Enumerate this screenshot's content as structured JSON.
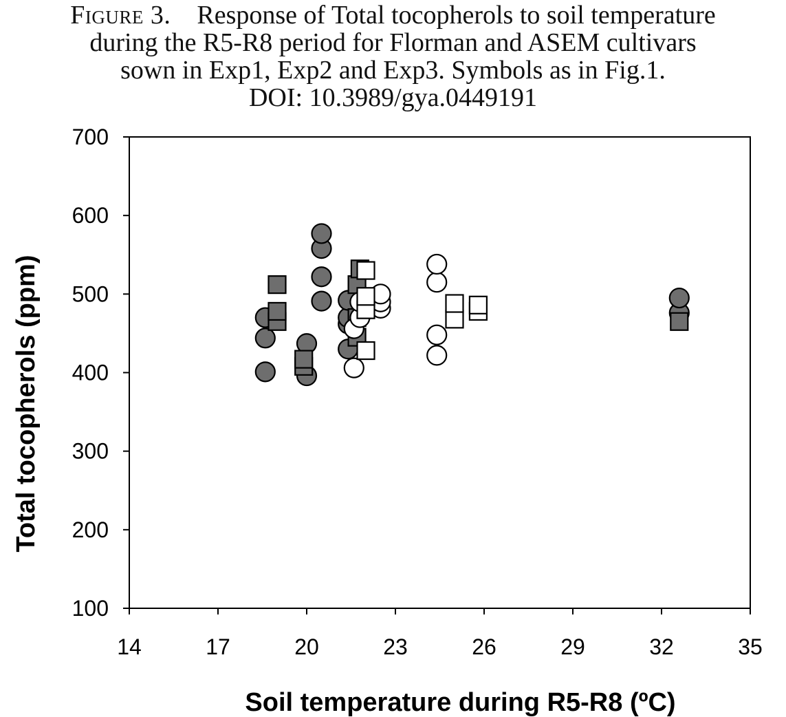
{
  "caption": {
    "figure_label": "Figure 3.",
    "line1_rest": "Response of Total tocopherols to soil temperature",
    "line2": "during the R5-R8 period for Florman and ASEM cultivars",
    "line3": "sown in Exp1, Exp2 and Exp3. Symbols as in Fig.1.",
    "line4": "DOI: 10.3989/gya.0449191"
  },
  "chart_data": {
    "type": "scatter",
    "title": "",
    "xlabel": "Soil temperature during R5-R8 (ºC)",
    "ylabel": "Total tocopherols (ppm)",
    "xlim": [
      14,
      35
    ],
    "ylim": [
      100,
      700
    ],
    "xticks": [
      14,
      17,
      20,
      23,
      26,
      29,
      32,
      35
    ],
    "yticks": [
      100,
      200,
      300,
      400,
      500,
      600,
      700
    ],
    "grid": false,
    "legend": "none",
    "colors": {
      "filled": "#6e6e6e",
      "open": "#ffffff",
      "stroke": "#000000"
    },
    "series": [
      {
        "marker": "circle",
        "fill": "filled",
        "points": [
          [
            18.6,
            401
          ],
          [
            18.6,
            444
          ],
          [
            18.6,
            470
          ],
          [
            20.0,
            396
          ],
          [
            20.0,
            437
          ],
          [
            20.5,
            491
          ],
          [
            20.5,
            522
          ],
          [
            20.5,
            558
          ],
          [
            20.5,
            577
          ],
          [
            21.4,
            430
          ],
          [
            21.4,
            462
          ],
          [
            21.4,
            470
          ],
          [
            21.4,
            492
          ],
          [
            32.6,
            476
          ],
          [
            32.6,
            495
          ]
        ]
      },
      {
        "marker": "square",
        "fill": "filled",
        "points": [
          [
            19.0,
            465
          ],
          [
            19.0,
            478
          ],
          [
            19.0,
            512
          ],
          [
            19.9,
            408
          ],
          [
            19.9,
            417
          ],
          [
            21.7,
            445
          ],
          [
            21.7,
            470
          ],
          [
            21.7,
            512
          ],
          [
            21.8,
            532
          ],
          [
            32.6,
            465
          ]
        ]
      },
      {
        "marker": "circle",
        "fill": "open",
        "points": [
          [
            21.6,
            406
          ],
          [
            21.6,
            456
          ],
          [
            21.8,
            470
          ],
          [
            21.8,
            490
          ],
          [
            22.5,
            482
          ],
          [
            22.5,
            490
          ],
          [
            22.5,
            500
          ],
          [
            24.4,
            422
          ],
          [
            24.4,
            448
          ],
          [
            24.4,
            515
          ],
          [
            24.4,
            538
          ]
        ]
      },
      {
        "marker": "square",
        "fill": "open",
        "points": [
          [
            22.0,
            428
          ],
          [
            22.0,
            480
          ],
          [
            22.0,
            497
          ],
          [
            22.0,
            530
          ],
          [
            25.0,
            468
          ],
          [
            25.0,
            488
          ],
          [
            25.8,
            478
          ],
          [
            25.8,
            486
          ]
        ]
      }
    ]
  }
}
